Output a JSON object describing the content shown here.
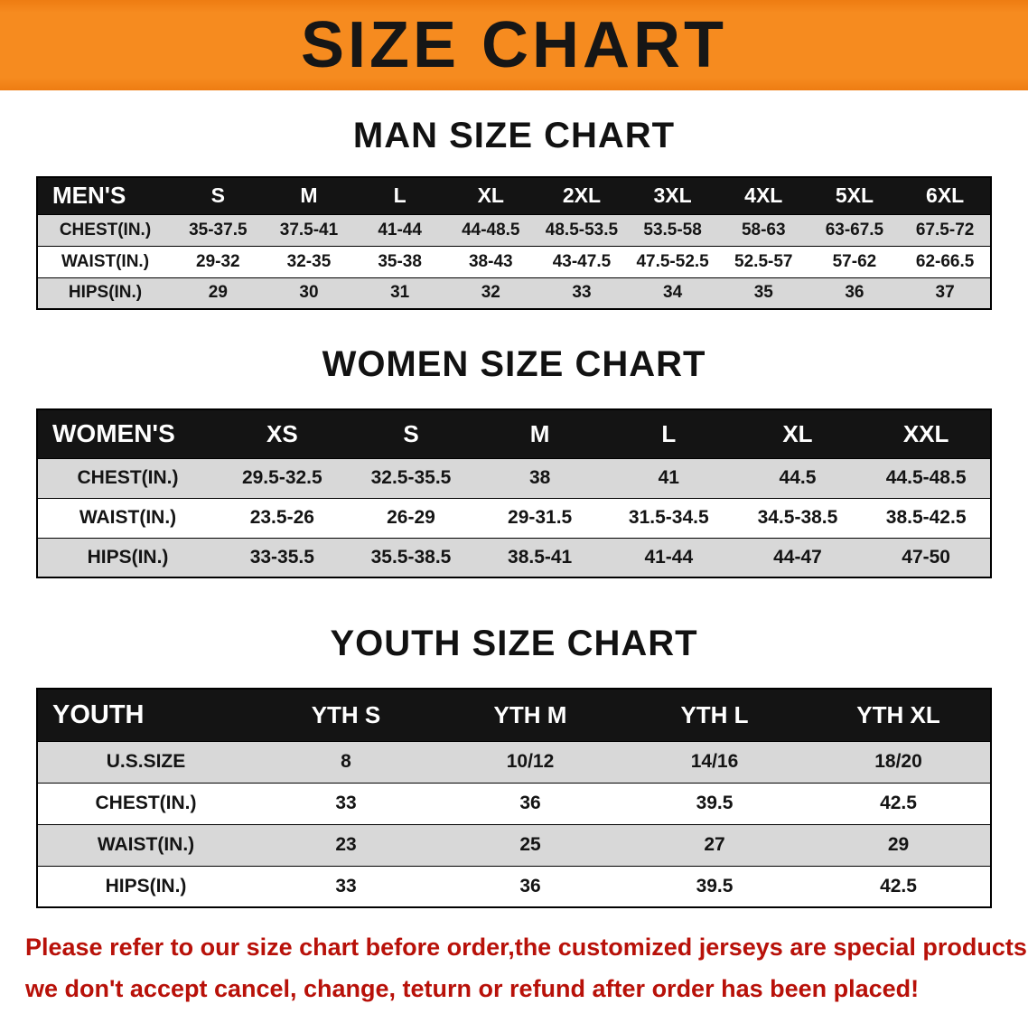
{
  "banner": {
    "title": "SIZE CHART"
  },
  "colors": {
    "banner_orange": "#f68b1f",
    "header_black": "#141414",
    "row_gray": "#d8d8d8",
    "note_red": "#b81109"
  },
  "sections": [
    {
      "heading": "MAN SIZE CHART",
      "table": {
        "corner": "MEN'S",
        "columns": [
          "S",
          "M",
          "L",
          "XL",
          "2XL",
          "3XL",
          "4XL",
          "5XL",
          "6XL"
        ],
        "rows": [
          {
            "label": "CHEST(IN.)",
            "values": [
              "35-37.5",
              "37.5-41",
              "41-44",
              "44-48.5",
              "48.5-53.5",
              "53.5-58",
              "58-63",
              "63-67.5",
              "67.5-72"
            ]
          },
          {
            "label": "WAIST(IN.)",
            "values": [
              "29-32",
              "32-35",
              "35-38",
              "38-43",
              "43-47.5",
              "47.5-52.5",
              "52.5-57",
              "57-62",
              "62-66.5"
            ]
          },
          {
            "label": "HIPS(IN.)",
            "values": [
              "29",
              "30",
              "31",
              "32",
              "33",
              "34",
              "35",
              "36",
              "37"
            ]
          }
        ]
      }
    },
    {
      "heading": "WOMEN SIZE CHART",
      "table": {
        "corner": "WOMEN'S",
        "columns": [
          "XS",
          "S",
          "M",
          "L",
          "XL",
          "XXL"
        ],
        "rows": [
          {
            "label": "CHEST(IN.)",
            "values": [
              "29.5-32.5",
              "32.5-35.5",
              "38",
              "41",
              "44.5",
              "44.5-48.5"
            ]
          },
          {
            "label": "WAIST(IN.)",
            "values": [
              "23.5-26",
              "26-29",
              "29-31.5",
              "31.5-34.5",
              "34.5-38.5",
              "38.5-42.5"
            ]
          },
          {
            "label": "HIPS(IN.)",
            "values": [
              "33-35.5",
              "35.5-38.5",
              "38.5-41",
              "41-44",
              "44-47",
              "47-50"
            ]
          }
        ]
      }
    },
    {
      "heading": "YOUTH SIZE CHART",
      "table": {
        "corner": "YOUTH",
        "columns": [
          "YTH S",
          "YTH M",
          "YTH L",
          "YTH XL"
        ],
        "rows": [
          {
            "label": "U.S.SIZE",
            "values": [
              "8",
              "10/12",
              "14/16",
              "18/20"
            ]
          },
          {
            "label": "CHEST(IN.)",
            "values": [
              "33",
              "36",
              "39.5",
              "42.5"
            ]
          },
          {
            "label": "WAIST(IN.)",
            "values": [
              "23",
              "25",
              "27",
              "29"
            ]
          },
          {
            "label": "HIPS(IN.)",
            "values": [
              "33",
              "36",
              "39.5",
              "42.5"
            ]
          }
        ]
      }
    }
  ],
  "footer": {
    "line1": "Please refer to our size chart before order,the customized jerseys are special products,",
    "line2": "we don't accept cancel, change, teturn or refund after order has been placed!"
  }
}
